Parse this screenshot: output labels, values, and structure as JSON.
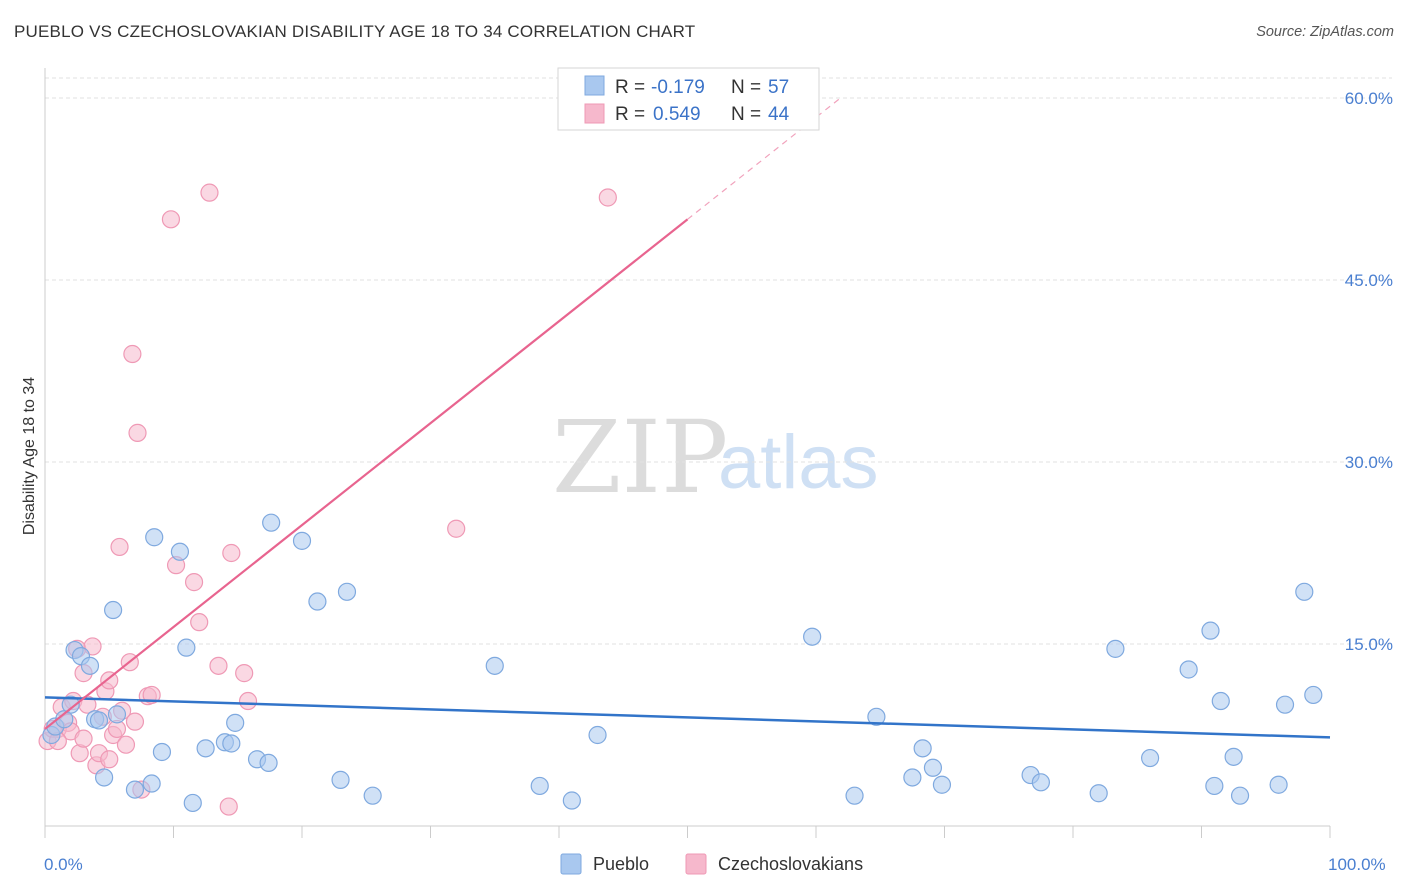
{
  "header": {
    "title": "PUEBLO VS CZECHOSLOVAKIAN DISABILITY AGE 18 TO 34 CORRELATION CHART",
    "source": "Source: ZipAtlas.com"
  },
  "watermark": {
    "zip": "ZIP",
    "atlas": "atlas"
  },
  "legend": {
    "r_label": "R =",
    "n_label": "N =",
    "pueblo": {
      "r": "-0.179",
      "n": "57"
    },
    "czech": {
      "r": "0.549",
      "n": "44"
    }
  },
  "colors": {
    "pueblo_fill": "#a9c8ef",
    "pueblo_stroke": "#7fa9df",
    "pueblo_line": "#3274c9",
    "czech_fill": "#f6b8cc",
    "czech_stroke": "#ef99b5",
    "czech_line": "#e8648f",
    "grid": "#e2e2e2",
    "tick": "#4a7fd0"
  },
  "chart_data": {
    "type": "scatter",
    "title": "PUEBLO VS CZECHOSLOVAKIAN DISABILITY AGE 18 TO 34 CORRELATION CHART",
    "xlabel": "",
    "ylabel": "Disability Age 18 to 34",
    "xlim": [
      0,
      100
    ],
    "ylim": [
      0,
      60
    ],
    "x_tick_labels": [
      "0.0%",
      "100.0%"
    ],
    "y_ticks": [
      15,
      30,
      45,
      60
    ],
    "y_tick_labels": [
      "15.0%",
      "30.0%",
      "45.0%",
      "60.0%"
    ],
    "series": [
      {
        "name": "Pueblo",
        "r": -0.179,
        "n": 57,
        "trend": {
          "x": [
            0,
            100
          ],
          "y": [
            10.6,
            7.3
          ]
        },
        "points": [
          [
            0.5,
            7.5
          ],
          [
            0.8,
            8.2
          ],
          [
            1.5,
            8.8
          ],
          [
            2.0,
            10.0
          ],
          [
            2.3,
            14.5
          ],
          [
            2.8,
            14.0
          ],
          [
            3.5,
            13.2
          ],
          [
            3.9,
            8.8
          ],
          [
            4.2,
            8.7
          ],
          [
            4.6,
            4.0
          ],
          [
            5.3,
            17.8
          ],
          [
            5.6,
            9.2
          ],
          [
            7.0,
            3.0
          ],
          [
            8.3,
            3.5
          ],
          [
            8.5,
            23.8
          ],
          [
            9.1,
            6.1
          ],
          [
            10.5,
            22.6
          ],
          [
            11.0,
            14.7
          ],
          [
            11.5,
            1.9
          ],
          [
            12.5,
            6.4
          ],
          [
            14.0,
            6.9
          ],
          [
            14.5,
            6.8
          ],
          [
            14.8,
            8.5
          ],
          [
            16.5,
            5.5
          ],
          [
            17.4,
            5.2
          ],
          [
            17.6,
            25.0
          ],
          [
            20.0,
            23.5
          ],
          [
            21.2,
            18.5
          ],
          [
            23.0,
            3.8
          ],
          [
            23.5,
            19.3
          ],
          [
            25.5,
            2.5
          ],
          [
            35.0,
            13.2
          ],
          [
            38.5,
            3.3
          ],
          [
            41.0,
            2.1
          ],
          [
            43.0,
            7.5
          ],
          [
            59.7,
            15.6
          ],
          [
            63.0,
            2.5
          ],
          [
            64.7,
            9.0
          ],
          [
            67.5,
            4.0
          ],
          [
            68.3,
            6.4
          ],
          [
            69.1,
            4.8
          ],
          [
            69.8,
            3.4
          ],
          [
            76.7,
            4.2
          ],
          [
            77.5,
            3.6
          ],
          [
            82.0,
            2.7
          ],
          [
            83.3,
            14.6
          ],
          [
            86.0,
            5.6
          ],
          [
            89.0,
            12.9
          ],
          [
            90.7,
            16.1
          ],
          [
            91.0,
            3.3
          ],
          [
            91.5,
            10.3
          ],
          [
            92.5,
            5.7
          ],
          [
            93.0,
            2.5
          ],
          [
            96.0,
            3.4
          ],
          [
            96.5,
            10.0
          ],
          [
            98.0,
            19.3
          ],
          [
            98.7,
            10.8
          ]
        ]
      },
      {
        "name": "Czechoslovakians",
        "r": 0.549,
        "n": 44,
        "trend": {
          "x": [
            0,
            50
          ],
          "y": [
            8.0,
            50.0
          ]
        },
        "points": [
          [
            0.2,
            7.0
          ],
          [
            0.6,
            8.0
          ],
          [
            1.0,
            8.0
          ],
          [
            1.3,
            9.8
          ],
          [
            1.8,
            8.5
          ],
          [
            2.0,
            7.8
          ],
          [
            2.2,
            10.3
          ],
          [
            2.5,
            14.6
          ],
          [
            2.7,
            6.0
          ],
          [
            3.0,
            12.6
          ],
          [
            3.3,
            10.0
          ],
          [
            3.7,
            14.8
          ],
          [
            4.0,
            5.0
          ],
          [
            4.2,
            6.0
          ],
          [
            4.5,
            9.0
          ],
          [
            4.7,
            11.1
          ],
          [
            5.0,
            12.0
          ],
          [
            5.3,
            7.5
          ],
          [
            5.6,
            8.0
          ],
          [
            5.8,
            23.0
          ],
          [
            6.0,
            9.5
          ],
          [
            6.3,
            6.7
          ],
          [
            6.6,
            13.5
          ],
          [
            6.8,
            38.9
          ],
          [
            7.0,
            8.6
          ],
          [
            7.2,
            32.4
          ],
          [
            7.5,
            3.0
          ],
          [
            8.0,
            10.7
          ],
          [
            8.3,
            10.8
          ],
          [
            9.8,
            50.0
          ],
          [
            10.2,
            21.5
          ],
          [
            11.6,
            20.1
          ],
          [
            12.0,
            16.8
          ],
          [
            12.8,
            52.2
          ],
          [
            13.5,
            13.2
          ],
          [
            14.3,
            1.6
          ],
          [
            14.5,
            22.5
          ],
          [
            15.5,
            12.6
          ],
          [
            15.8,
            10.3
          ],
          [
            32.0,
            24.5
          ],
          [
            43.8,
            51.8
          ],
          [
            1.0,
            7.0
          ],
          [
            3.0,
            7.2
          ],
          [
            5.0,
            5.5
          ]
        ]
      }
    ]
  },
  "bottom_legend": {
    "pueblo": "Pueblo",
    "czech": "Czechoslovakians"
  },
  "axis": {
    "ylabel": "Disability Age 18 to 34",
    "x_min": "0.0%",
    "x_max": "100.0%"
  }
}
